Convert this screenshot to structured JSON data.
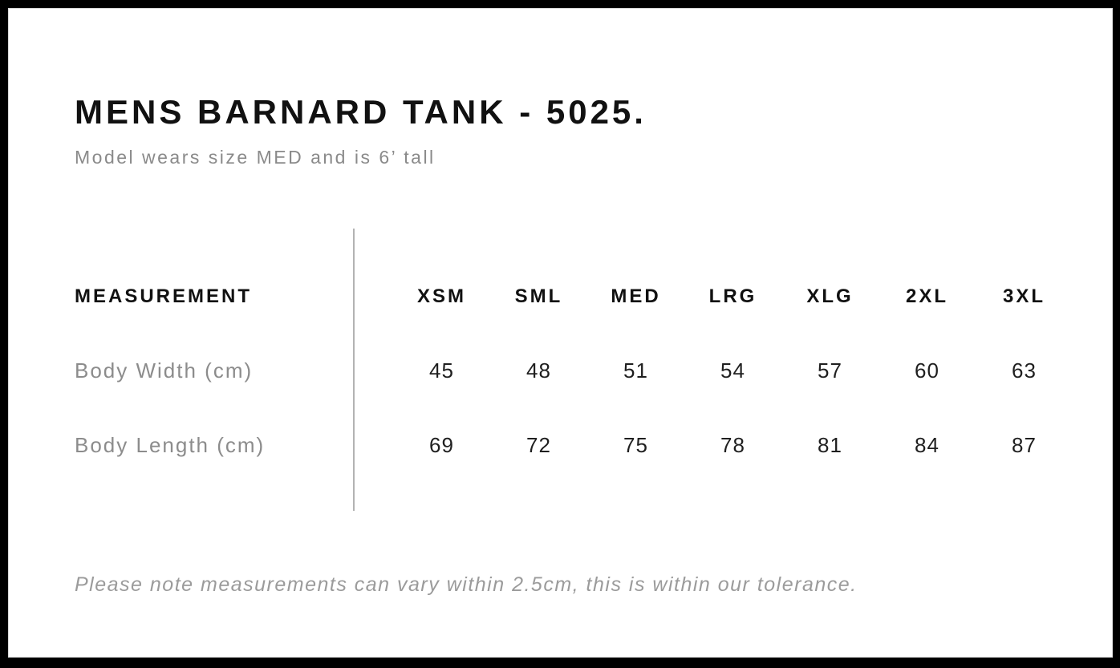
{
  "page": {
    "title": "MENS BARNARD TANK - 5025.",
    "subtitle": "Model wears size MED and is 6’ tall"
  },
  "table": {
    "measurement_label": "MEASUREMENT",
    "sizes": [
      "XSM",
      "SML",
      "MED",
      "LRG",
      "XLG",
      "2XL",
      "3XL"
    ],
    "rows": [
      {
        "label": "Body Width (cm)",
        "values": [
          "45",
          "48",
          "51",
          "54",
          "57",
          "60",
          "63"
        ]
      },
      {
        "label": "Body Length (cm)",
        "values": [
          "69",
          "72",
          "75",
          "78",
          "81",
          "84",
          "87"
        ]
      }
    ]
  },
  "footer": {
    "note": "Please note measurements can vary within 2.5cm, this is within our tolerance."
  },
  "colors": {
    "text_primary": "#111111",
    "text_muted": "#8c8c8c",
    "divider": "#b3b3b3",
    "frame": "#000000"
  }
}
